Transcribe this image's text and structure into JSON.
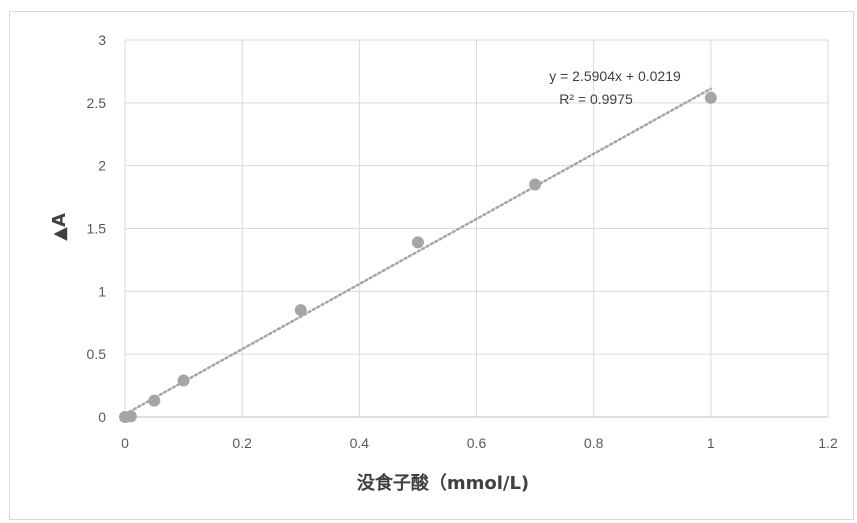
{
  "chart_data": {
    "type": "scatter",
    "xlabel": "没食子酸（mmol/L)",
    "ylabel": "▲A",
    "xlim": [
      0,
      1.2
    ],
    "ylim": [
      0,
      3
    ],
    "x_ticks": [
      "0",
      "0.2",
      "0.4",
      "0.6",
      "0.8",
      "1",
      "1.2"
    ],
    "y_ticks": [
      "0",
      "0.5",
      "1",
      "1.5",
      "2",
      "2.5",
      "3"
    ],
    "grid": true,
    "points": [
      {
        "x": 0,
        "y": 0
      },
      {
        "x": 0.01,
        "y": 0.005
      },
      {
        "x": 0.05,
        "y": 0.13
      },
      {
        "x": 0.1,
        "y": 0.29
      },
      {
        "x": 0.3,
        "y": 0.85
      },
      {
        "x": 0.5,
        "y": 1.39
      },
      {
        "x": 0.7,
        "y": 1.85
      },
      {
        "x": 1,
        "y": 2.54
      }
    ],
    "trendline": {
      "type": "linear",
      "slope": 2.5904,
      "intercept": 0.0219,
      "style": "dotted",
      "equation": "y = 2.5904x + 0.0219",
      "r2": "R² = 0.9975"
    },
    "colors": {
      "points": "#a5a5a5",
      "trendline": "#a5a5a5",
      "grid": "#d9d9d9"
    }
  }
}
